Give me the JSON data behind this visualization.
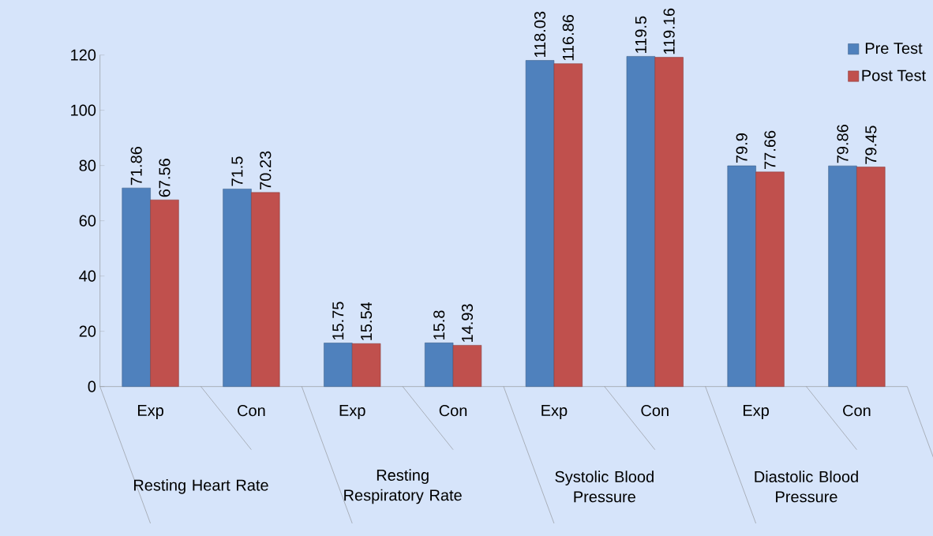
{
  "chart_data": {
    "type": "bar",
    "categories": [
      "Exp",
      "Con",
      "Exp",
      "Con",
      "Exp",
      "Con",
      "Exp",
      "Con"
    ],
    "series": [
      {
        "name": "Pre Test",
        "color": "#4f81bd",
        "values": [
          71.86,
          71.5,
          15.75,
          15.8,
          118.03,
          119.5,
          79.9,
          79.86
        ]
      },
      {
        "name": "Post Test",
        "color": "#c0504d",
        "values": [
          67.56,
          70.23,
          15.54,
          14.93,
          116.86,
          119.16,
          77.66,
          79.45
        ]
      }
    ],
    "annotations": [
      "Resting Heart Rate",
      "Resting Respiratory Rate",
      "Systolic Blood Pressure",
      "Diastolic Blood Pressure"
    ],
    "ylim": [
      0,
      120
    ],
    "yticks": [
      0,
      20,
      40,
      60,
      80,
      100,
      120
    ],
    "data_labels": true,
    "legend": "top right"
  }
}
